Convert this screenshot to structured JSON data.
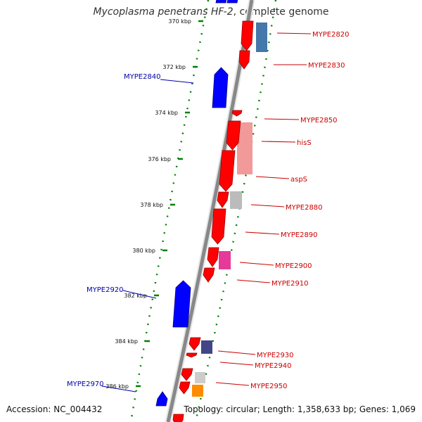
{
  "title": {
    "organism": "Mycoplasma penetrans HF-2",
    "suffix": ", complete genome"
  },
  "footer": {
    "accession": "Accession: NC_004432",
    "topology": "Topology: circular; Length: 1,358,633 bp; Genes: 1,069"
  },
  "colors": {
    "forward_gene": "#ff0000",
    "reverse_gene": "#0000ff",
    "forward_label": "#cc0000",
    "reverse_label": "#0000aa",
    "tick": "#008000",
    "backbone": "#777777"
  },
  "scale_ticks": [
    "370 kbp",
    "372 kbp",
    "374 kbp",
    "376 kbp",
    "378 kbp",
    "380 kbp",
    "382 kbp",
    "384 kbp",
    "386 kbp"
  ],
  "forward_genes": [
    "MYPE2820",
    "MYPE2830",
    "MYPE2850",
    "hisS",
    "aspS",
    "MYPE2880",
    "MYPE2890",
    "MYPE2900",
    "MYPE2910",
    "MYPE2930",
    "MYPE2940",
    "MYPE2950"
  ],
  "reverse_genes": [
    "MYPE2840",
    "MYPE2920",
    "MYPE2970"
  ]
}
